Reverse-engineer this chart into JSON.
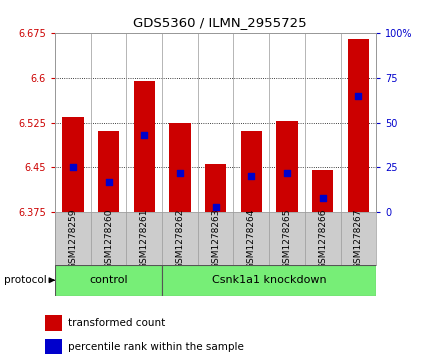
{
  "title": "GDS5360 / ILMN_2955725",
  "samples": [
    "GSM1278259",
    "GSM1278260",
    "GSM1278261",
    "GSM1278262",
    "GSM1278263",
    "GSM1278264",
    "GSM1278265",
    "GSM1278266",
    "GSM1278267"
  ],
  "bar_values": [
    6.535,
    6.51,
    6.595,
    6.525,
    6.455,
    6.51,
    6.528,
    6.445,
    6.665
  ],
  "percentile_values": [
    25,
    17,
    43,
    22,
    3,
    20,
    22,
    8,
    65
  ],
  "y_min": 6.375,
  "y_max": 6.675,
  "y_ticks_left": [
    6.375,
    6.45,
    6.525,
    6.6,
    6.675
  ],
  "y_ticks_right": [
    0,
    25,
    50,
    75,
    100
  ],
  "bar_color": "#cc0000",
  "percentile_color": "#0000cc",
  "control_label": "control",
  "knockdown_label": "Csnk1a1 knockdown",
  "control_count": 3,
  "protocol_label": "protocol",
  "legend_bar_label": "transformed count",
  "legend_pct_label": "percentile rank within the sample",
  "group_color": "#77ee77",
  "tick_label_color_left": "#cc0000",
  "tick_label_color_right": "#0000cc",
  "background_color": "#ffffff"
}
